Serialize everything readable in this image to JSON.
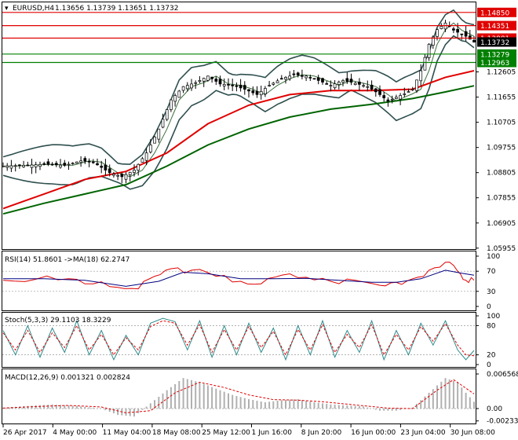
{
  "window": {
    "title": "EURUSD,H4",
    "ohlc": "1.13656 1.13739 1.13651 1.13732"
  },
  "colors": {
    "background": "#ffffff",
    "ma_fast": "#e00000",
    "ma_slow": "#006400",
    "band": "#2f4f4f",
    "candle": "#000000",
    "rsi": "#e00000",
    "rsi_ma": "#000080",
    "stoch_main": "#2e8b8b",
    "stoch_signal": "#e00000",
    "macd_hist": "#b0b0b0",
    "macd_signal": "#e00000"
  },
  "chart_data": [
    {
      "type": "candlestick",
      "name": "EURUSD,H4",
      "ylim": [
        1.0595,
        1.152
      ],
      "y_ticks": [
        "1.12605",
        "1.11655",
        "1.10705",
        "1.09755",
        "1.08805",
        "1.07855",
        "1.06905",
        "1.05955"
      ],
      "price_tags": [
        {
          "value": 1.1485,
          "label": "1.14850",
          "color": "#e00000"
        },
        {
          "value": 1.14351,
          "label": "1.14351",
          "color": "#e00000"
        },
        {
          "value": 1.13881,
          "label": "1.13881",
          "color": "#e00000"
        },
        {
          "value": 1.13732,
          "label": "1.13732",
          "color": "#000000"
        },
        {
          "value": 1.13279,
          "label": "1.13279",
          "color": "#008000"
        },
        {
          "value": 1.12963,
          "label": "1.12963",
          "color": "#008000"
        }
      ],
      "horizontal_lines": [
        {
          "value": 1.1485,
          "color": "#e00000"
        },
        {
          "value": 1.14351,
          "color": "#e00000"
        },
        {
          "value": 1.13881,
          "color": "#e00000"
        },
        {
          "value": 1.13279,
          "color": "#008000"
        },
        {
          "value": 1.12963,
          "color": "#008000"
        }
      ],
      "close_path": [
        [
          0,
          1.0905
        ],
        [
          5,
          1.0908
        ],
        [
          10,
          1.0912
        ],
        [
          15,
          1.0908
        ],
        [
          19,
          1.0925
        ],
        [
          22,
          1.092
        ],
        [
          26,
          1.088
        ],
        [
          29,
          1.0865
        ],
        [
          32,
          1.089
        ],
        [
          35,
          1.0955
        ],
        [
          38,
          1.1045
        ],
        [
          41,
          1.1155
        ],
        [
          44,
          1.1205
        ],
        [
          47,
          1.122
        ],
        [
          50,
          1.1245
        ],
        [
          53,
          1.1215
        ],
        [
          56,
          1.121
        ],
        [
          59,
          1.1195
        ],
        [
          62,
          1.1175
        ],
        [
          65,
          1.121
        ],
        [
          68,
          1.1235
        ],
        [
          71,
          1.125
        ],
        [
          74,
          1.1245
        ],
        [
          77,
          1.1228
        ],
        [
          80,
          1.121
        ],
        [
          83,
          1.1228
        ],
        [
          86,
          1.1218
        ],
        [
          89,
          1.1205
        ],
        [
          92,
          1.1175
        ],
        [
          94,
          1.115
        ],
        [
          96,
          1.1165
        ],
        [
          98,
          1.1178
        ],
        [
          100,
          1.1195
        ],
        [
          102,
          1.1265
        ],
        [
          104,
          1.1365
        ],
        [
          106,
          1.142
        ],
        [
          108,
          1.1445
        ],
        [
          110,
          1.1418
        ],
        [
          113,
          1.1395
        ],
        [
          115,
          1.1373
        ]
      ],
      "ma_fast": [
        [
          0,
          1.0745
        ],
        [
          10,
          1.08
        ],
        [
          20,
          1.0855
        ],
        [
          30,
          1.0885
        ],
        [
          40,
          1.0955
        ],
        [
          50,
          1.1065
        ],
        [
          60,
          1.1135
        ],
        [
          70,
          1.1175
        ],
        [
          80,
          1.119
        ],
        [
          90,
          1.119
        ],
        [
          100,
          1.1195
        ],
        [
          108,
          1.124
        ],
        [
          115,
          1.1265
        ]
      ],
      "ma_slow": [
        [
          0,
          1.0725
        ],
        [
          10,
          1.0765
        ],
        [
          20,
          1.08
        ],
        [
          30,
          1.0835
        ],
        [
          40,
          1.0905
        ],
        [
          50,
          1.0985
        ],
        [
          60,
          1.1045
        ],
        [
          70,
          1.109
        ],
        [
          80,
          1.112
        ],
        [
          90,
          1.1138
        ],
        [
          100,
          1.116
        ],
        [
          108,
          1.1185
        ],
        [
          115,
          1.1208
        ]
      ]
    },
    {
      "type": "line",
      "name": "RSI",
      "label": "RSI(14) 51.8601  ->MA(18) 62.2747",
      "ylim": [
        0,
        100
      ],
      "y_ticks": [
        "100",
        "70",
        "30",
        "0"
      ],
      "levels": [
        70,
        30
      ],
      "series": [
        {
          "values": [
            [
              0,
              52
            ],
            [
              8,
              54
            ],
            [
              16,
              55
            ],
            [
              22,
              45
            ],
            [
              28,
              38
            ],
            [
              33,
              35
            ],
            [
              37,
              60
            ],
            [
              41,
              75
            ],
            [
              46,
              72
            ],
            [
              52,
              60
            ],
            [
              58,
              50
            ],
            [
              63,
              45
            ],
            [
              68,
              62
            ],
            [
              74,
              58
            ],
            [
              80,
              50
            ],
            [
              86,
              52
            ],
            [
              92,
              42
            ],
            [
              96,
              48
            ],
            [
              100,
              55
            ],
            [
              104,
              72
            ],
            [
              108,
              88
            ],
            [
              111,
              70
            ],
            [
              113,
              52
            ],
            [
              115,
              52
            ]
          ]
        },
        {
          "values": [
            [
              0,
              55
            ],
            [
              10,
              55
            ],
            [
              20,
              52
            ],
            [
              30,
              40
            ],
            [
              38,
              50
            ],
            [
              44,
              68
            ],
            [
              50,
              65
            ],
            [
              58,
              55
            ],
            [
              66,
              55
            ],
            [
              74,
              56
            ],
            [
              82,
              52
            ],
            [
              90,
              48
            ],
            [
              96,
              48
            ],
            [
              102,
              55
            ],
            [
              108,
              72
            ],
            [
              112,
              66
            ],
            [
              115,
              62
            ]
          ]
        }
      ]
    },
    {
      "type": "line",
      "name": "Stochastic",
      "label": "Stoch(5,3,3) 29.1103  18.3229",
      "ylim": [
        0,
        100
      ],
      "y_ticks": [
        "100",
        "80",
        "20",
        "0"
      ],
      "levels": [
        80,
        20
      ],
      "series": [
        {
          "values": [
            [
              0,
              70
            ],
            [
              3,
              20
            ],
            [
              6,
              80
            ],
            [
              9,
              15
            ],
            [
              12,
              75
            ],
            [
              15,
              25
            ],
            [
              18,
              90
            ],
            [
              21,
              20
            ],
            [
              24,
              70
            ],
            [
              27,
              10
            ],
            [
              30,
              60
            ],
            [
              33,
              20
            ],
            [
              36,
              85
            ],
            [
              39,
              95
            ],
            [
              42,
              88
            ],
            [
              45,
              30
            ],
            [
              48,
              90
            ],
            [
              51,
              15
            ],
            [
              54,
              80
            ],
            [
              57,
              20
            ],
            [
              60,
              85
            ],
            [
              63,
              25
            ],
            [
              66,
              75
            ],
            [
              69,
              10
            ],
            [
              72,
              80
            ],
            [
              75,
              20
            ],
            [
              78,
              90
            ],
            [
              81,
              15
            ],
            [
              84,
              70
            ],
            [
              87,
              25
            ],
            [
              90,
              90
            ],
            [
              93,
              10
            ],
            [
              96,
              70
            ],
            [
              99,
              20
            ],
            [
              102,
              85
            ],
            [
              105,
              40
            ],
            [
              108,
              90
            ],
            [
              111,
              30
            ],
            [
              113,
              10
            ],
            [
              115,
              29
            ]
          ]
        },
        {
          "values": [
            [
              0,
              65
            ],
            [
              3,
              30
            ],
            [
              6,
              70
            ],
            [
              9,
              25
            ],
            [
              12,
              65
            ],
            [
              15,
              35
            ],
            [
              18,
              80
            ],
            [
              21,
              30
            ],
            [
              24,
              62
            ],
            [
              27,
              20
            ],
            [
              30,
              55
            ],
            [
              33,
              30
            ],
            [
              36,
              78
            ],
            [
              39,
              90
            ],
            [
              42,
              85
            ],
            [
              45,
              40
            ],
            [
              48,
              82
            ],
            [
              51,
              25
            ],
            [
              54,
              72
            ],
            [
              57,
              30
            ],
            [
              60,
              78
            ],
            [
              63,
              35
            ],
            [
              66,
              68
            ],
            [
              69,
              20
            ],
            [
              72,
              72
            ],
            [
              75,
              30
            ],
            [
              78,
              82
            ],
            [
              81,
              25
            ],
            [
              84,
              62
            ],
            [
              87,
              35
            ],
            [
              90,
              82
            ],
            [
              93,
              20
            ],
            [
              96,
              62
            ],
            [
              99,
              30
            ],
            [
              102,
              78
            ],
            [
              105,
              48
            ],
            [
              108,
              84
            ],
            [
              111,
              40
            ],
            [
              113,
              20
            ],
            [
              115,
              18
            ]
          ]
        }
      ]
    },
    {
      "type": "bar",
      "name": "MACD",
      "label": "MACD(12,26,9) 0.001321 0.002824",
      "ylim": [
        -0.00238,
        0.00657
      ],
      "y_ticks": [
        "0.006568",
        "0.00",
        "-0.002338"
      ],
      "series": [
        {
          "values": [
            [
              0,
              0.0002
            ],
            [
              6,
              0.0005
            ],
            [
              12,
              0.0008
            ],
            [
              18,
              0.0005
            ],
            [
              24,
              0.0
            ],
            [
              28,
              -0.0012
            ],
            [
              32,
              -0.0015
            ],
            [
              36,
              0.001
            ],
            [
              40,
              0.0035
            ],
            [
              44,
              0.0058
            ],
            [
              48,
              0.005
            ],
            [
              52,
              0.0038
            ],
            [
              56,
              0.0026
            ],
            [
              60,
              0.0018
            ],
            [
              64,
              0.0012
            ],
            [
              68,
              0.0016
            ],
            [
              72,
              0.0018
            ],
            [
              76,
              0.0012
            ],
            [
              80,
              0.0008
            ],
            [
              84,
              0.0006
            ],
            [
              88,
              0.0004
            ],
            [
              92,
              -0.0004
            ],
            [
              96,
              -0.0004
            ],
            [
              100,
              0.0002
            ],
            [
              104,
              0.003
            ],
            [
              108,
              0.0058
            ],
            [
              111,
              0.005
            ],
            [
              113,
              0.003
            ],
            [
              115,
              0.0013
            ]
          ]
        },
        {
          "values": [
            [
              0,
              0.0001
            ],
            [
              8,
              0.0004
            ],
            [
              16,
              0.0006
            ],
            [
              24,
              0.0003
            ],
            [
              30,
              -0.0008
            ],
            [
              36,
              -0.0004
            ],
            [
              42,
              0.003
            ],
            [
              48,
              0.005
            ],
            [
              54,
              0.004
            ],
            [
              60,
              0.0026
            ],
            [
              66,
              0.0017
            ],
            [
              72,
              0.0016
            ],
            [
              78,
              0.0013
            ],
            [
              86,
              0.0007
            ],
            [
              94,
              0.0001
            ],
            [
              100,
              0.0
            ],
            [
              106,
              0.0035
            ],
            [
              110,
              0.0055
            ],
            [
              115,
              0.0028
            ]
          ]
        }
      ]
    }
  ],
  "x_axis": {
    "labels": [
      "26 Apr 2017",
      "4 May 00:00",
      "11 May 04:00",
      "18 May 08:00",
      "25 May 12:00",
      "1 Jun 16:00",
      "8 Jun 20:00",
      "16 Jun 00:00",
      "23 Jun 04:00",
      "30 Jun 08:00"
    ]
  }
}
